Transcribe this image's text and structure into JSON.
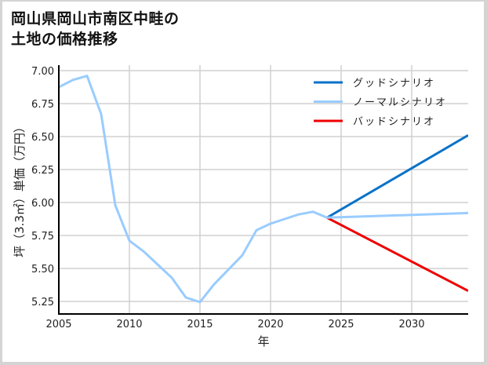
{
  "title": {
    "line1": "岡山県岡山市南区中畦の",
    "line2": "土地の価格推移"
  },
  "colors": {
    "good": "#0a72c8",
    "normal": "#99ccff",
    "bad": "#ee0000",
    "grid": "#d0d0d0",
    "axis": "#000000",
    "frame": "#d4d4d4"
  },
  "axes": {
    "xlabel": "年",
    "ylabel": "坪（3.3㎡）単価（万円）",
    "xticks": [
      "2005",
      "2010",
      "2015",
      "2020",
      "2025",
      "2030"
    ],
    "yticks": [
      "7.00",
      "6.75",
      "6.50",
      "6.25",
      "6.00",
      "5.75",
      "5.50",
      "5.25"
    ]
  },
  "legend": [
    {
      "label": "グッドシナリオ",
      "key": "good"
    },
    {
      "label": "ノーマルシナリオ",
      "key": "normal"
    },
    {
      "label": "バッドシナリオ",
      "key": "bad"
    }
  ],
  "chart_data": {
    "type": "line",
    "title": "岡山県岡山市南区中畦の土地の価格推移",
    "xlabel": "年",
    "ylabel": "坪（3.3㎡）単価（万円）",
    "xlim": [
      2005,
      2034
    ],
    "ylim": [
      5.16,
      7.04
    ],
    "grid": true,
    "legend_position": "upper right",
    "series": [
      {
        "name": "ノーマルシナリオ",
        "color": "#99ccff",
        "x": [
          2005,
          2006,
          2007,
          2008,
          2009,
          2010,
          2011,
          2012,
          2013,
          2014,
          2015,
          2016,
          2017,
          2018,
          2019,
          2020,
          2021,
          2022,
          2023,
          2024,
          2034
        ],
        "values": [
          6.875,
          6.93,
          6.96,
          6.67,
          5.98,
          5.71,
          5.63,
          5.53,
          5.43,
          5.28,
          5.245,
          5.38,
          5.49,
          5.6,
          5.79,
          5.84,
          5.875,
          5.91,
          5.93,
          5.885,
          5.92
        ]
      },
      {
        "name": "グッドシナリオ",
        "color": "#0a72c8",
        "x": [
          2024,
          2034
        ],
        "values": [
          5.885,
          6.51
        ]
      },
      {
        "name": "バッドシナリオ",
        "color": "#ee0000",
        "x": [
          2024,
          2034
        ],
        "values": [
          5.885,
          5.33
        ]
      }
    ]
  }
}
